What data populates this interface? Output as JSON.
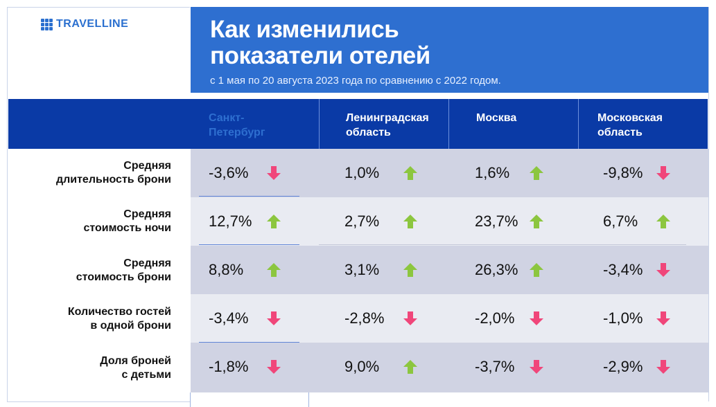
{
  "brand": {
    "name": "TRAVELLINE",
    "accent": "#2a6fcf"
  },
  "header": {
    "title_line1": "Как изменились",
    "title_line2": "показатели отелей",
    "subtitle": "с 1 мая по 20 августа 2023 года по сравнению с 2022 годом."
  },
  "columns": [
    {
      "line1": "Санкт-",
      "line2": "Петербург"
    },
    {
      "line1": "Ленинградская",
      "line2": "область"
    },
    {
      "line1": "Москва",
      "line2": ""
    },
    {
      "line1": "Московская",
      "line2": "область"
    }
  ],
  "rows": [
    {
      "label_line1": "Средняя",
      "label_line2": "длительность брони",
      "cells": [
        {
          "value": "-3,6%",
          "trend": "down"
        },
        {
          "value": "1,0%",
          "trend": "up"
        },
        {
          "value": "1,6%",
          "trend": "up"
        },
        {
          "value": "-9,8%",
          "trend": "down"
        }
      ]
    },
    {
      "label_line1": "Средняя",
      "label_line2": "стоимость ночи",
      "cells": [
        {
          "value": "12,7%",
          "trend": "up"
        },
        {
          "value": "2,7%",
          "trend": "up"
        },
        {
          "value": "23,7%",
          "trend": "up"
        },
        {
          "value": "6,7%",
          "trend": "up"
        }
      ]
    },
    {
      "label_line1": "Средняя",
      "label_line2": "стоимость брони",
      "cells": [
        {
          "value": "8,8%",
          "trend": "up"
        },
        {
          "value": "3,1%",
          "trend": "up"
        },
        {
          "value": "26,3%",
          "trend": "up"
        },
        {
          "value": "-3,4%",
          "trend": "down"
        }
      ]
    },
    {
      "label_line1": "Количество гостей",
      "label_line2": "в одной брони",
      "cells": [
        {
          "value": "-3,4%",
          "trend": "down"
        },
        {
          "value": "-2,8%",
          "trend": "down"
        },
        {
          "value": "-2,0%",
          "trend": "down"
        },
        {
          "value": "-1,0%",
          "trend": "down"
        }
      ]
    },
    {
      "label_line1": "Доля броней",
      "label_line2": "с детьми",
      "cells": [
        {
          "value": "-1,8%",
          "trend": "down"
        },
        {
          "value": "9,0%",
          "trend": "up"
        },
        {
          "value": "-3,7%",
          "trend": "down"
        },
        {
          "value": "-2,9%",
          "trend": "down"
        }
      ]
    }
  ],
  "colors": {
    "up": "#8cc63f",
    "down": "#f0467a",
    "header_band": "#2e6fd0",
    "column_band": "#0a3aa6"
  }
}
